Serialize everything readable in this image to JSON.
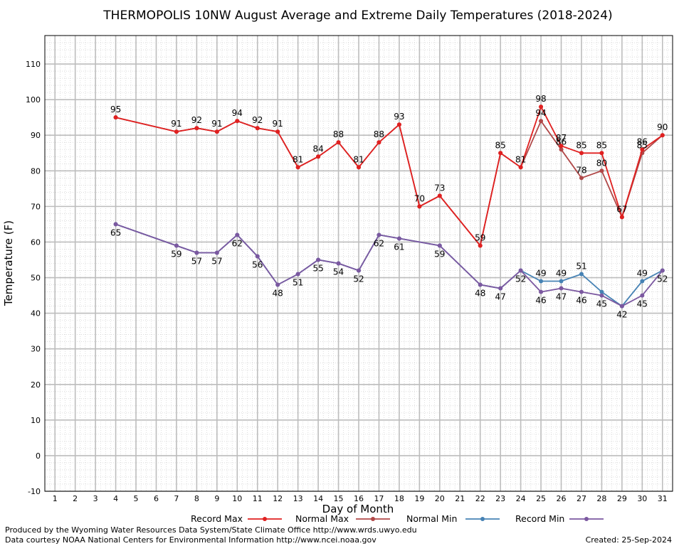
{
  "chart_data": {
    "type": "line",
    "title": "THERMOPOLIS 10NW August Average and Extreme Daily Temperatures (2018-2024)",
    "xlabel": "Day of Month",
    "ylabel": "Temperature (F)",
    "xlim": [
      0.5,
      31.5
    ],
    "ylim": [
      -10,
      118
    ],
    "x_ticks": [
      1,
      2,
      3,
      4,
      5,
      6,
      7,
      8,
      9,
      10,
      11,
      12,
      13,
      14,
      15,
      16,
      17,
      18,
      19,
      20,
      21,
      22,
      23,
      24,
      25,
      26,
      27,
      28,
      29,
      30,
      31
    ],
    "y_ticks": [
      -10,
      0,
      10,
      20,
      30,
      40,
      50,
      60,
      70,
      80,
      90,
      100,
      110
    ],
    "grid": true,
    "legend_position": "bottom",
    "series": [
      {
        "name": "Record Max",
        "color": "#e02020",
        "points": [
          [
            4,
            95
          ],
          [
            7,
            91
          ],
          [
            8,
            92
          ],
          [
            9,
            91
          ],
          [
            10,
            94
          ],
          [
            11,
            92
          ],
          [
            12,
            91
          ],
          [
            13,
            81
          ],
          [
            14,
            84
          ],
          [
            15,
            88
          ],
          [
            16,
            81
          ],
          [
            17,
            88
          ],
          [
            18,
            93
          ],
          [
            19,
            70
          ],
          [
            20,
            73
          ],
          [
            22,
            59
          ],
          [
            23,
            85
          ],
          [
            24,
            81
          ],
          [
            25,
            98
          ],
          [
            26,
            87
          ],
          [
            27,
            85
          ],
          [
            28,
            85
          ],
          [
            29,
            67
          ],
          [
            30,
            86
          ],
          [
            31,
            90
          ]
        ],
        "labels": [
          [
            "95",
            4,
            95
          ],
          [
            "91",
            7,
            91
          ],
          [
            "92",
            8,
            92
          ],
          [
            "91",
            9,
            91
          ],
          [
            "94",
            10,
            94
          ],
          [
            "92",
            11,
            92
          ],
          [
            "91",
            12,
            91
          ],
          [
            "81",
            13,
            81
          ],
          [
            "84",
            14,
            84
          ],
          [
            "88",
            15,
            88
          ],
          [
            "81",
            16,
            81
          ],
          [
            "88",
            17,
            88
          ],
          [
            "93",
            18,
            93
          ],
          [
            "70",
            19,
            70
          ],
          [
            "73",
            20,
            73
          ],
          [
            "59",
            22,
            59
          ],
          [
            "85",
            23,
            85
          ],
          [
            "81",
            24,
            81
          ],
          [
            "98",
            25,
            98
          ],
          [
            "87",
            26,
            87
          ],
          [
            "85",
            27,
            85
          ],
          [
            "85",
            28,
            85
          ],
          [
            "86",
            30,
            86
          ],
          [
            "90",
            31,
            90
          ]
        ]
      },
      {
        "name": "Normal Max",
        "color": "#b04848",
        "points": [
          [
            4,
            95
          ],
          [
            7,
            91
          ],
          [
            8,
            92
          ],
          [
            9,
            91
          ],
          [
            10,
            94
          ],
          [
            11,
            92
          ],
          [
            12,
            91
          ],
          [
            13,
            81
          ],
          [
            14,
            84
          ],
          [
            15,
            88
          ],
          [
            16,
            81
          ],
          [
            17,
            88
          ],
          [
            18,
            93
          ],
          [
            19,
            70
          ],
          [
            20,
            73
          ],
          [
            22,
            59
          ],
          [
            23,
            85
          ],
          [
            24,
            81
          ],
          [
            25,
            94
          ],
          [
            26,
            86
          ],
          [
            27,
            78
          ],
          [
            28,
            80
          ],
          [
            29,
            67
          ],
          [
            30,
            85
          ],
          [
            31,
            90
          ]
        ],
        "labels": [
          [
            "94",
            25,
            94
          ],
          [
            "86",
            26,
            86
          ],
          [
            "78",
            27,
            78
          ],
          [
            "80",
            28,
            80
          ],
          [
            "67",
            29,
            67
          ],
          [
            "85",
            30,
            85
          ]
        ]
      },
      {
        "name": "Normal Min",
        "color": "#4682b4",
        "points": [
          [
            4,
            65
          ],
          [
            7,
            59
          ],
          [
            8,
            57
          ],
          [
            9,
            57
          ],
          [
            10,
            62
          ],
          [
            11,
            56
          ],
          [
            12,
            48
          ],
          [
            13,
            51
          ],
          [
            14,
            55
          ],
          [
            15,
            54
          ],
          [
            16,
            52
          ],
          [
            17,
            62
          ],
          [
            18,
            61
          ],
          [
            20,
            59
          ],
          [
            22,
            48
          ],
          [
            23,
            47
          ],
          [
            24,
            52
          ],
          [
            25,
            49
          ],
          [
            26,
            49
          ],
          [
            27,
            51
          ],
          [
            28,
            46
          ],
          [
            29,
            42
          ],
          [
            30,
            49
          ],
          [
            31,
            52
          ]
        ],
        "labels": [
          [
            "49",
            25,
            49
          ],
          [
            "49",
            26,
            49
          ],
          [
            "51",
            27,
            51
          ],
          [
            "49",
            30,
            49
          ]
        ]
      },
      {
        "name": "Record Min",
        "color": "#7b58a0",
        "points": [
          [
            4,
            65
          ],
          [
            7,
            59
          ],
          [
            8,
            57
          ],
          [
            9,
            57
          ],
          [
            10,
            62
          ],
          [
            11,
            56
          ],
          [
            12,
            48
          ],
          [
            13,
            51
          ],
          [
            14,
            55
          ],
          [
            15,
            54
          ],
          [
            16,
            52
          ],
          [
            17,
            62
          ],
          [
            18,
            61
          ],
          [
            20,
            59
          ],
          [
            22,
            48
          ],
          [
            23,
            47
          ],
          [
            24,
            52
          ],
          [
            25,
            46
          ],
          [
            26,
            47
          ],
          [
            27,
            46
          ],
          [
            28,
            45
          ],
          [
            29,
            42
          ],
          [
            30,
            45
          ],
          [
            31,
            52
          ]
        ],
        "labels": [
          [
            "65",
            4,
            65
          ],
          [
            "59",
            7,
            59
          ],
          [
            "57",
            8,
            57
          ],
          [
            "57",
            9,
            57
          ],
          [
            "62",
            10,
            62
          ],
          [
            "56",
            11,
            56
          ],
          [
            "48",
            12,
            48
          ],
          [
            "51",
            13,
            51
          ],
          [
            "55",
            14,
            55
          ],
          [
            "54",
            15,
            54
          ],
          [
            "52",
            16,
            52
          ],
          [
            "62",
            17,
            62
          ],
          [
            "61",
            18,
            61
          ],
          [
            "59",
            20,
            59
          ],
          [
            "48",
            22,
            48
          ],
          [
            "47",
            23,
            47
          ],
          [
            "52",
            24,
            52
          ],
          [
            "46",
            25,
            46
          ],
          [
            "47",
            26,
            47
          ],
          [
            "46",
            27,
            46
          ],
          [
            "45",
            28,
            45
          ],
          [
            "42",
            29,
            42
          ],
          [
            "45",
            30,
            45
          ],
          [
            "52",
            31,
            52
          ]
        ]
      }
    ]
  },
  "footer": {
    "produced_by": "Produced by the Wyoming Water Resources Data System/State Climate Office http://www.wrds.uwyo.edu",
    "data_courtesy": "Data courtesy NOAA National Centers for Environmental Information http://www.ncei.noaa.gov",
    "created": "Created: 25-Sep-2024"
  }
}
